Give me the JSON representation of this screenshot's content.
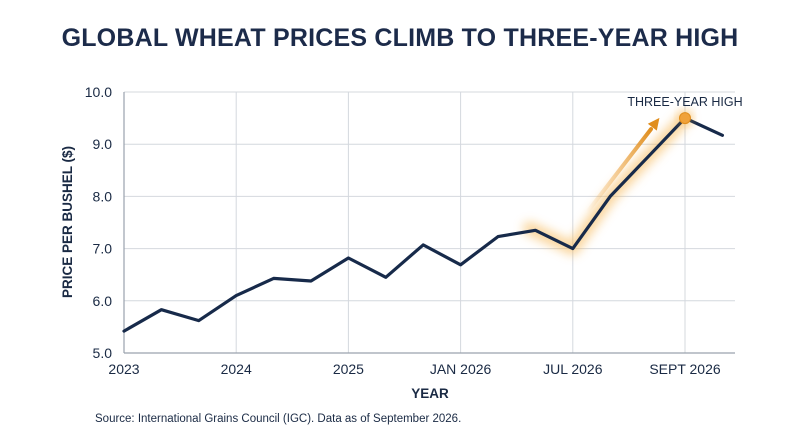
{
  "chart_data": {
    "type": "line",
    "title": "GLOBAL WHEAT PRICES CLIMB TO THREE-YEAR HIGH",
    "xlabel": "YEAR",
    "ylabel": "PRICE PER BUSHEL ($)",
    "ylim": [
      5.0,
      10.0
    ],
    "y_ticks": [
      "5.0",
      "6.0",
      "7.0",
      "8.0",
      "9.0",
      "10.0"
    ],
    "x_ticks": [
      "2023",
      "2024",
      "2025",
      "JAN 2026",
      "JUL 2026",
      "SEPT 2026"
    ],
    "grid": true,
    "series": [
      {
        "values": [
          5.42,
          5.83,
          5.62,
          6.1,
          6.43,
          6.38,
          6.82,
          6.45,
          7.07,
          6.69,
          7.23,
          7.35,
          7.0,
          8.0,
          8.75,
          9.5,
          9.17
        ]
      }
    ],
    "annotation": {
      "text": "THREE-YEAR HIGH",
      "value": 9.5,
      "color": "#f0a23a"
    },
    "line_color": "#172a4a",
    "source": "Source: International Grains Council (IGC). Data as of September 2026."
  }
}
